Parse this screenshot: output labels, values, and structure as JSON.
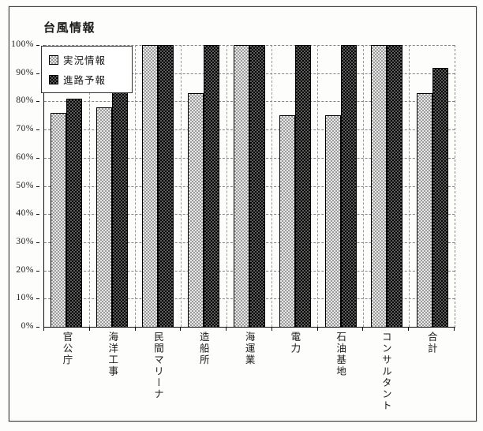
{
  "page": {
    "background": "#fdfdfc",
    "frame_color": "#3a3a3a"
  },
  "chart_data": {
    "type": "bar",
    "title": "台風情報",
    "categories": [
      "官公庁",
      "海洋工事",
      "民間マリーナ",
      "造船所",
      "海運業",
      "電力",
      "石油基地",
      "コンサルタント",
      "合計"
    ],
    "series": [
      {
        "name": "実況情報",
        "color": "#d6d6d6",
        "pattern": "light-halftone",
        "values": [
          76,
          78,
          100,
          83,
          100,
          75,
          75,
          100,
          83
        ]
      },
      {
        "name": "進路予報",
        "color": "#2b2b2b",
        "pattern": "dark-halftone",
        "values": [
          81,
          89,
          100,
          100,
          100,
          100,
          100,
          100,
          92
        ]
      }
    ],
    "xlabel": "",
    "ylabel": "",
    "ylim": [
      0,
      100
    ],
    "ytick_step": 10,
    "ytick_suffix": "%",
    "ytick_labels": [
      "0%",
      "10%",
      "20%",
      "30%",
      "40%",
      "50%",
      "60%",
      "70%",
      "80%",
      "90%",
      "100%"
    ],
    "grid": true,
    "grid_style": "dashed",
    "legend_position": "top-left-inside",
    "bar_outline": "#000000"
  }
}
